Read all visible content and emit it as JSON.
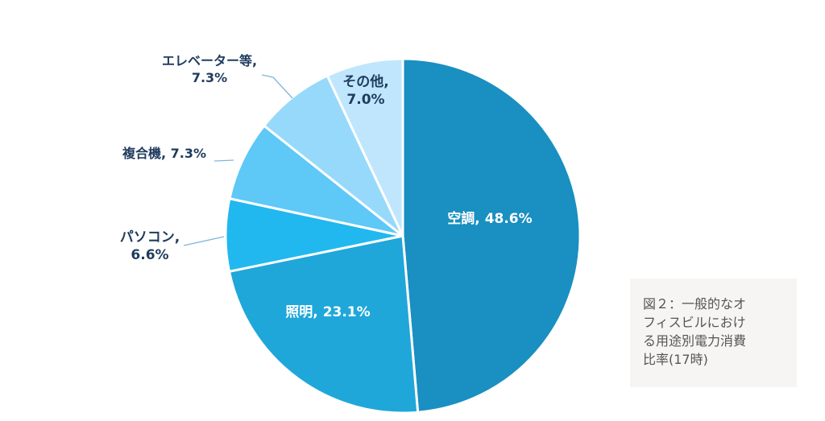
{
  "chart_data": {
    "type": "pie",
    "slices": [
      {
        "label": "空調",
        "value_text": "48.6%",
        "value": 48.6,
        "color": "#1a8fc1",
        "label_color": "#ffffff",
        "label_lines": [
          "空調, 48.6%"
        ]
      },
      {
        "label": "照明",
        "value_text": "23.1%",
        "value": 23.1,
        "color": "#1fa7da",
        "label_color": "#ffffff",
        "label_lines": [
          "照明, 23.1%"
        ]
      },
      {
        "label": "パソコン",
        "value_text": "6.6%",
        "value": 6.6,
        "color": "#21b8ef",
        "label_color": "#1f3b5e",
        "label_lines": [
          "パソコン,",
          "6.6%"
        ]
      },
      {
        "label": "複合機",
        "value_text": "7.3%",
        "value": 7.3,
        "color": "#5ec8f7",
        "label_color": "#1f3b5e",
        "label_lines": [
          "複合機, 7.3%"
        ]
      },
      {
        "label": "エレベーター等",
        "value_text": "7.3%",
        "value": 7.3,
        "color": "#97d9fb",
        "label_color": "#1f3b5e",
        "label_lines": [
          "エレベーター等,",
          "7.3%"
        ]
      },
      {
        "label": "その他",
        "value_text": "7.0%",
        "value": 7.0,
        "color": "#bfe6fd",
        "label_color": "#1f3b5e",
        "label_lines": [
          "その他,",
          "7.0%"
        ]
      }
    ]
  },
  "caption": {
    "lines": [
      "図２：一般的なオ",
      "フィスビルにおけ",
      "る用途別電力消費",
      "比率(17時)"
    ]
  }
}
